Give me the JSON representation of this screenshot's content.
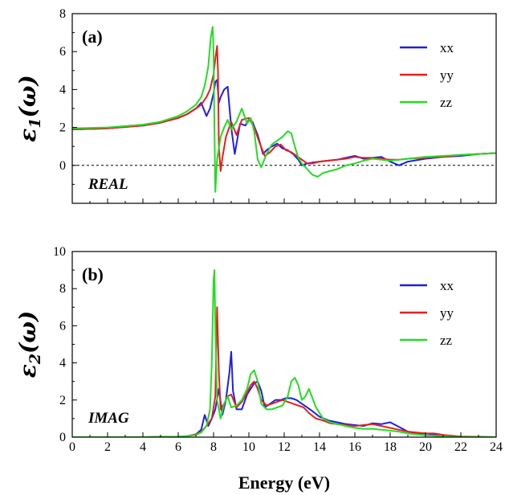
{
  "colors": {
    "xx": "#1f1fe6",
    "yy": "#e61f1f",
    "zz": "#22dd22",
    "axis": "#000000"
  },
  "chart_data": [
    {
      "type": "line",
      "label": "(a)",
      "annotation": "REAL",
      "ylabel": "ε1(ω)",
      "ylabel_main": "ε",
      "ylabel_sub": "1",
      "ylabel_arg": "(ω)",
      "xlabel": "",
      "xlim": [
        0,
        24
      ],
      "ylim": [
        -2,
        8
      ],
      "yticks": [
        0,
        2,
        4,
        6,
        8
      ],
      "xticks": [
        0,
        2,
        4,
        6,
        8,
        10,
        12,
        14,
        16,
        18,
        20,
        22,
        24
      ],
      "show_xtick_labels": false,
      "zero_line": true,
      "legend_position": "top-right",
      "series": [
        {
          "name": "xx",
          "color_key": "xx",
          "x": [
            0,
            2,
            4,
            5,
            6,
            6.5,
            7,
            7.3,
            7.6,
            7.8,
            8.0,
            8.1,
            8.2,
            8.3,
            8.4,
            8.6,
            8.8,
            9.0,
            9.2,
            9.5,
            9.8,
            10.0,
            10.2,
            10.5,
            10.8,
            11.0,
            11.3,
            11.6,
            11.9,
            12.2,
            12.5,
            12.8,
            13.0,
            13.3,
            13.6,
            14.0,
            14.5,
            15,
            15.5,
            16,
            16.5,
            17,
            17.5,
            18,
            18.5,
            19,
            20,
            21,
            22,
            23,
            24
          ],
          "y": [
            1.9,
            1.95,
            2.1,
            2.25,
            2.5,
            2.7,
            3.0,
            3.3,
            2.6,
            3.0,
            3.8,
            4.4,
            4.5,
            3.3,
            3.6,
            4.0,
            4.15,
            2.0,
            0.6,
            2.2,
            2.1,
            2.4,
            2.3,
            1.6,
            0.6,
            0.8,
            1.0,
            1.15,
            0.9,
            0.8,
            0.6,
            0.3,
            0.0,
            0.1,
            0.15,
            0.2,
            0.25,
            0.3,
            0.4,
            0.5,
            0.35,
            0.4,
            0.45,
            0.2,
            0.0,
            0.2,
            0.35,
            0.45,
            0.5,
            0.6,
            0.65
          ]
        },
        {
          "name": "yy",
          "color_key": "yy",
          "x": [
            0,
            2,
            4,
            5,
            6,
            6.5,
            7,
            7.3,
            7.6,
            7.8,
            8.0,
            8.1,
            8.2,
            8.25,
            8.3,
            8.4,
            8.5,
            8.7,
            9.0,
            9.3,
            9.6,
            10.0,
            10.3,
            10.6,
            10.9,
            11.2,
            11.5,
            11.8,
            12.1,
            12.4,
            12.7,
            13.0,
            13.3,
            13.6,
            14.0,
            14.5,
            15,
            15.5,
            16,
            16.5,
            17,
            17.5,
            18,
            18.5,
            19,
            20,
            21,
            22,
            23,
            24
          ],
          "y": [
            1.9,
            1.95,
            2.1,
            2.25,
            2.5,
            2.7,
            3.0,
            3.2,
            3.6,
            4.0,
            4.8,
            5.6,
            6.3,
            5.0,
            1.0,
            -0.3,
            0.4,
            1.5,
            2.3,
            1.6,
            2.4,
            2.5,
            2.0,
            1.2,
            0.5,
            0.7,
            1.0,
            1.1,
            0.8,
            0.7,
            0.5,
            0.3,
            0.1,
            0.1,
            0.2,
            0.25,
            0.3,
            0.35,
            0.45,
            0.4,
            0.4,
            0.35,
            0.3,
            0.3,
            0.35,
            0.4,
            0.45,
            0.55,
            0.6,
            0.65
          ]
        },
        {
          "name": "zz",
          "color_key": "zz",
          "x": [
            0,
            2,
            4,
            5,
            6,
            6.5,
            7,
            7.3,
            7.5,
            7.7,
            7.85,
            7.95,
            8.0,
            8.05,
            8.1,
            8.2,
            8.4,
            8.6,
            8.8,
            9.0,
            9.3,
            9.6,
            9.9,
            10.1,
            10.3,
            10.5,
            10.7,
            11.0,
            11.3,
            11.6,
            11.9,
            12.2,
            12.4,
            12.6,
            12.8,
            13.0,
            13.3,
            13.6,
            13.9,
            14.2,
            14.6,
            15,
            15.5,
            16,
            16.5,
            17,
            17.5,
            18,
            18.5,
            19,
            20,
            21,
            22,
            23,
            24
          ],
          "y": [
            1.95,
            2.0,
            2.15,
            2.3,
            2.6,
            2.85,
            3.2,
            3.6,
            4.2,
            5.2,
            6.8,
            7.3,
            6.0,
            2.0,
            -1.4,
            0.3,
            1.5,
            2.0,
            2.4,
            1.9,
            2.3,
            3.0,
            2.2,
            2.5,
            1.8,
            0.3,
            -0.1,
            0.6,
            1.1,
            1.3,
            1.5,
            1.8,
            1.7,
            1.0,
            0.4,
            0.1,
            -0.2,
            -0.5,
            -0.6,
            -0.4,
            -0.3,
            -0.2,
            0.0,
            0.1,
            0.25,
            0.35,
            0.3,
            0.25,
            0.3,
            0.35,
            0.45,
            0.5,
            0.55,
            0.6,
            0.65
          ]
        }
      ]
    },
    {
      "type": "line",
      "label": "(b)",
      "annotation": "IMAG",
      "ylabel": "ε2(ω)",
      "ylabel_main": "ε",
      "ylabel_sub": "2",
      "ylabel_arg": "(ω)",
      "xlabel": "Energy (eV)",
      "xlim": [
        0,
        24
      ],
      "ylim": [
        0,
        10
      ],
      "yticks": [
        0,
        2,
        4,
        6,
        8,
        10
      ],
      "xticks": [
        0,
        2,
        4,
        6,
        8,
        10,
        12,
        14,
        16,
        18,
        20,
        22,
        24
      ],
      "show_xtick_labels": true,
      "zero_line": false,
      "legend_position": "top-right",
      "series": [
        {
          "name": "xx",
          "color_key": "xx",
          "x": [
            0,
            4,
            6,
            6.5,
            7.0,
            7.3,
            7.5,
            7.7,
            7.9,
            8.1,
            8.3,
            8.5,
            8.7,
            8.9,
            9.0,
            9.1,
            9.3,
            9.6,
            9.9,
            10.1,
            10.3,
            10.5,
            10.7,
            10.9,
            11.2,
            11.5,
            11.8,
            12.1,
            12.4,
            12.7,
            13.0,
            13.3,
            13.6,
            14.0,
            14.5,
            15,
            15.5,
            16,
            16.5,
            17,
            17.5,
            18,
            18.5,
            19,
            19.5,
            20,
            20.5,
            21,
            21.5,
            22,
            24
          ],
          "y": [
            0,
            0,
            0.02,
            0.05,
            0.15,
            0.4,
            1.2,
            0.6,
            1.0,
            1.5,
            2.6,
            1.2,
            2.0,
            3.5,
            4.6,
            2.5,
            1.5,
            1.5,
            2.3,
            2.6,
            2.9,
            3.0,
            2.5,
            1.6,
            1.8,
            2.0,
            2.0,
            2.1,
            2.1,
            2.0,
            1.8,
            1.6,
            1.4,
            1.1,
            0.9,
            0.8,
            0.7,
            0.65,
            0.6,
            0.75,
            0.7,
            0.8,
            0.55,
            0.3,
            0.2,
            0.2,
            0.15,
            0.1,
            0.05,
            0.02,
            0
          ]
        },
        {
          "name": "yy",
          "color_key": "yy",
          "x": [
            0,
            4,
            6,
            6.5,
            7.0,
            7.3,
            7.6,
            7.9,
            8.1,
            8.2,
            8.3,
            8.4,
            8.6,
            8.8,
            9.0,
            9.3,
            9.6,
            9.9,
            10.1,
            10.3,
            10.5,
            10.7,
            11.0,
            11.3,
            11.6,
            11.9,
            12.2,
            12.5,
            12.8,
            13.1,
            13.4,
            13.8,
            14.2,
            14.6,
            15,
            15.5,
            16,
            16.5,
            17,
            17.5,
            18,
            18.5,
            19,
            19.5,
            20,
            20.5,
            21,
            21.5,
            22,
            24
          ],
          "y": [
            0,
            0,
            0.02,
            0.05,
            0.15,
            0.3,
            0.6,
            1.0,
            2.2,
            7.0,
            3.5,
            1.5,
            1.8,
            2.2,
            2.3,
            1.6,
            1.9,
            2.4,
            2.8,
            3.0,
            2.6,
            2.0,
            1.7,
            1.8,
            1.9,
            2.0,
            1.9,
            1.8,
            1.7,
            1.6,
            1.3,
            1.0,
            0.9,
            0.75,
            0.7,
            0.65,
            0.6,
            0.65,
            0.7,
            0.6,
            0.5,
            0.4,
            0.3,
            0.25,
            0.2,
            0.2,
            0.12,
            0.08,
            0.03,
            0
          ]
        },
        {
          "name": "zz",
          "color_key": "zz",
          "x": [
            0,
            4,
            6,
            6.5,
            7.0,
            7.3,
            7.6,
            7.8,
            7.9,
            8.0,
            8.05,
            8.1,
            8.2,
            8.4,
            8.6,
            8.8,
            9.0,
            9.3,
            9.6,
            9.9,
            10.1,
            10.3,
            10.5,
            10.7,
            11.0,
            11.3,
            11.6,
            11.9,
            12.2,
            12.4,
            12.6,
            12.8,
            13.0,
            13.2,
            13.4,
            13.8,
            14.2,
            14.6,
            15,
            15.5,
            16,
            16.5,
            17,
            17.5,
            18,
            18.5,
            19,
            19.5,
            20,
            20.5,
            21,
            21.5,
            22,
            24
          ],
          "y": [
            0,
            0,
            0.02,
            0.05,
            0.12,
            0.25,
            0.6,
            1.5,
            4.0,
            8.4,
            9.0,
            6.0,
            2.0,
            1.0,
            1.8,
            2.2,
            1.6,
            1.7,
            2.0,
            2.6,
            3.4,
            3.6,
            3.0,
            1.8,
            1.5,
            1.5,
            1.6,
            1.7,
            2.2,
            3.0,
            3.2,
            2.8,
            2.0,
            2.2,
            2.6,
            1.6,
            1.0,
            0.8,
            0.7,
            0.6,
            0.5,
            0.45,
            0.45,
            0.4,
            0.35,
            0.3,
            0.2,
            0.15,
            0.1,
            0.08,
            0.05,
            0.02,
            0.01,
            0
          ]
        }
      ]
    }
  ]
}
